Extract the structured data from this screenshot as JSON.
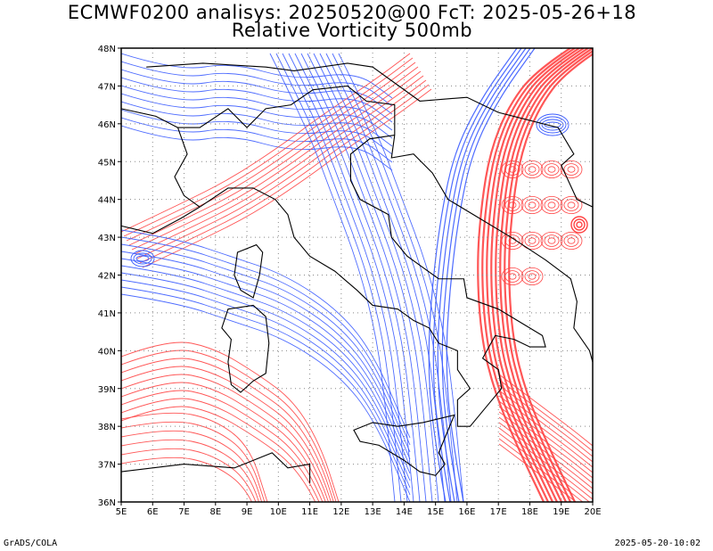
{
  "title_line1": "ECMWF0200 analisys: 20250520@00 FcT: 2025-05-26+18",
  "title_line2": "Relative Vorticity 500mb",
  "footer_left": "GrADS/COLA",
  "footer_right": "2025-05-20-10:02",
  "map": {
    "lon_range": [
      5,
      20
    ],
    "lat_range": [
      36,
      48
    ],
    "lon_labels": [
      "5E",
      "6E",
      "7E",
      "8E",
      "9E",
      "10E",
      "11E",
      "12E",
      "13E",
      "14E",
      "15E",
      "16E",
      "17E",
      "18E",
      "19E",
      "20E"
    ],
    "lat_labels": [
      "36N",
      "37N",
      "38N",
      "39N",
      "40N",
      "41N",
      "42N",
      "43N",
      "44N",
      "45N",
      "46N",
      "47N",
      "48N"
    ],
    "positive_color": "#ff4444",
    "negative_color": "#3a5bff",
    "coast_color": "#000000",
    "grid": "dotted"
  }
}
